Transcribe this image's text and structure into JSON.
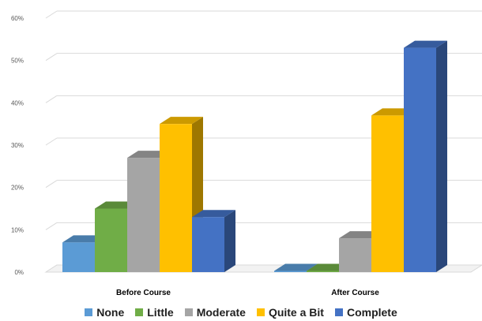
{
  "chart_data": {
    "type": "bar",
    "style": "3d-clustered-column",
    "categories": [
      "Before Course",
      "After Course"
    ],
    "series": [
      {
        "name": "None",
        "values": [
          7,
          0
        ],
        "color": "#5b9bd5"
      },
      {
        "name": "Little",
        "values": [
          15,
          0
        ],
        "color": "#70ad47"
      },
      {
        "name": "Moderate",
        "values": [
          27,
          8
        ],
        "color": "#a5a5a5"
      },
      {
        "name": "Quite a Bit",
        "values": [
          35,
          37
        ],
        "color": "#ffc000"
      },
      {
        "name": "Complete",
        "values": [
          13,
          53
        ],
        "color": "#4472c4"
      }
    ],
    "y_ticks": [
      "0%",
      "10%",
      "20%",
      "30%",
      "40%",
      "50%",
      "60%"
    ],
    "ylim": [
      0,
      60
    ],
    "y_unit": "%",
    "grid": true,
    "legend_position": "bottom"
  }
}
